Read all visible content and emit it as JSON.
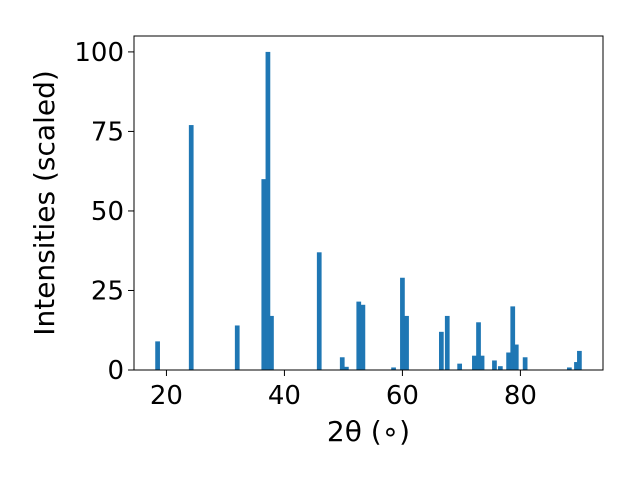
{
  "chart_data": {
    "type": "bar",
    "xlabel": "2θ (∘)",
    "ylabel": "Intensities (scaled)",
    "xlim": [
      14.5,
      94
    ],
    "ylim": [
      0,
      105
    ],
    "xticks": [
      "20",
      "40",
      "60",
      "80"
    ],
    "yticks": [
      "0",
      "25",
      "50",
      "75",
      "100"
    ],
    "grid": false,
    "bar_color": "#1f77b4",
    "bar_width": 0.8,
    "x": [
      18.5,
      24.2,
      32.0,
      36.5,
      37.2,
      37.8,
      45.9,
      49.8,
      50.5,
      52.6,
      53.3,
      58.5,
      60.0,
      60.7,
      66.6,
      67.6,
      69.7,
      72.2,
      72.9,
      73.5,
      75.6,
      76.6,
      78.0,
      78.7,
      79.3,
      80.8,
      88.3,
      89.5,
      90.0
    ],
    "values": [
      9,
      77,
      14,
      60,
      100,
      17,
      37,
      4,
      1,
      21.5,
      20.5,
      0.8,
      29,
      17,
      12,
      17,
      2,
      4.5,
      15,
      4.5,
      3,
      1.2,
      5.5,
      20,
      8,
      4,
      0.8,
      2.5,
      6
    ]
  }
}
